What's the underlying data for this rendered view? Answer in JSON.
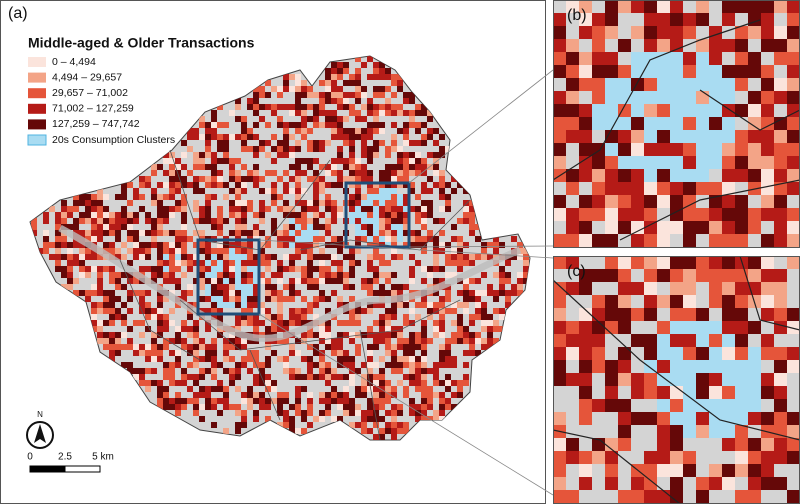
{
  "panels": {
    "a": "(a)",
    "b": "(b)",
    "c": "(c)"
  },
  "legend": {
    "title": "Middle-aged & Older Transactions",
    "items": [
      {
        "label": "0 – 4,494",
        "color": "#fbe4dc"
      },
      {
        "label": "4,494 – 29,657",
        "color": "#f3a487"
      },
      {
        "label": "29,657 – 71,002",
        "color": "#e5553a"
      },
      {
        "label": "71,002 – 127,259",
        "color": "#b51b17"
      },
      {
        "label": "127,259 – 747,742",
        "color": "#650808"
      },
      {
        "label": "20s Consumption Clusters",
        "color": "#a9dcf2"
      }
    ]
  },
  "north_arrow": "N",
  "scale_bar": [
    "0",
    "2.5",
    "5 km"
  ]
}
